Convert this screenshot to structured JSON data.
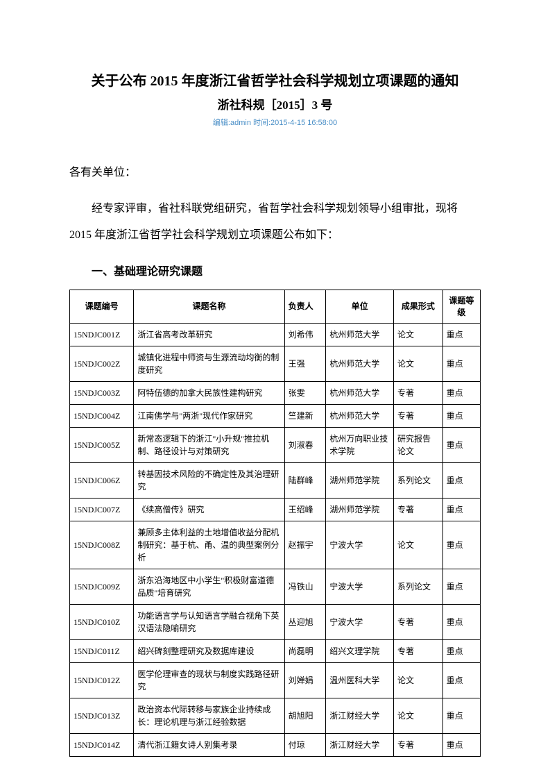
{
  "title": "关于公布 2015 年度浙江省哲学社会科学规划立项课题的通知",
  "subtitle": "浙社科规［2015］3 号",
  "meta": "编辑:admin 时间:2015-4-15 16:58:00",
  "greeting": "各有关单位：",
  "body": "经专家评审，省社科联党组研究，省哲学社会科学规划领导小组审批，现将 2015 年度浙江省哲学社会科学规划立项课题公布如下：",
  "section_heading": "一、基础理论研究课题",
  "table": {
    "columns": [
      "课题编号",
      "课题名称",
      "负责人",
      "单位",
      "成果形式",
      "课题等级"
    ],
    "rows": [
      [
        "15NDJC001Z",
        "浙江省高考改革研究",
        "刘希伟",
        "杭州师范大学",
        "论文",
        "重点"
      ],
      [
        "15NDJC002Z",
        "城镇化进程中师资与生源流动均衡的制度研究",
        "王强",
        "杭州师范大学",
        "论文",
        "重点"
      ],
      [
        "15NDJC003Z",
        "阿特伍德的加拿大民族性建构研究",
        "张雯",
        "杭州师范大学",
        "专著",
        "重点"
      ],
      [
        "15NDJC004Z",
        "江南佛学与\"两浙\"现代作家研究",
        "竺建新",
        "杭州师范大学",
        "专著",
        "重点"
      ],
      [
        "15NDJC005Z",
        "新常态逻辑下的浙江\"小升规\"推拉机制、路径设计与对策研究",
        "刘淑春",
        "杭州万向职业技术学院",
        "研究报告论文",
        "重点"
      ],
      [
        "15NDJC006Z",
        "转基因技术风险的不确定性及其治理研究",
        "陆群峰",
        "湖州师范学院",
        "系列论文",
        "重点"
      ],
      [
        "15NDJC007Z",
        "《续高僧传》研究",
        "王绍峰",
        "湖州师范学院",
        "专著",
        "重点"
      ],
      [
        "15NDJC008Z",
        "兼顾多主体利益的土地增值收益分配机制研究：基于杭、甬、温的典型案例分析",
        "赵振宇",
        "宁波大学",
        "论文",
        "重点"
      ],
      [
        "15NDJC009Z",
        "浙东沿海地区中小学生\"积极财富道德品质\"培育研究",
        "冯铁山",
        "宁波大学",
        "系列论文",
        "重点"
      ],
      [
        "15NDJC010Z",
        "功能语言学与认知语言学融合视角下英汉语法隐喻研究",
        "丛迎旭",
        "宁波大学",
        "专著",
        "重点"
      ],
      [
        "15NDJC011Z",
        "绍兴碑刻整理研究及数据库建设",
        "尚磊明",
        "绍兴文理学院",
        "专著",
        "重点"
      ],
      [
        "15NDJC012Z",
        "医学伦理审查的现状与制度实践路径研究",
        "刘婵娟",
        "温州医科大学",
        "论文",
        "重点"
      ],
      [
        "15NDJC013Z",
        "政治资本代际转移与家族企业持续成长：理论机理与浙江经验数据",
        "胡旭阳",
        "浙江财经大学",
        "论文",
        "重点"
      ],
      [
        "15NDJC014Z",
        "清代浙江籍女诗人别集考录",
        "付琼",
        "浙江财经大学",
        "专著",
        "重点"
      ]
    ]
  }
}
